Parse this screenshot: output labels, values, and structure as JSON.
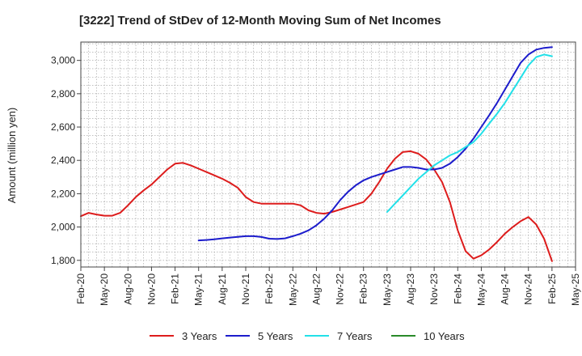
{
  "chart_data": {
    "type": "line",
    "title": "[3222]  Trend of StDev of 12-Month Moving Sum of Net Incomes",
    "xlabel": "",
    "ylabel": "Amount (million yen)",
    "ylim": [
      1760,
      3110
    ],
    "yticks": [
      1800,
      2000,
      2200,
      2400,
      2600,
      2800,
      3000
    ],
    "ytick_labels": [
      "1,800",
      "2,000",
      "2,200",
      "2,400",
      "2,600",
      "2,800",
      "3,000"
    ],
    "xticks": [
      "2020-02",
      "2020-05",
      "2020-08",
      "2020-11",
      "2021-02",
      "2021-05",
      "2021-08",
      "2021-11",
      "2022-02",
      "2022-05",
      "2022-08",
      "2022-11",
      "2023-02",
      "2023-05",
      "2023-08",
      "2023-11",
      "2024-02",
      "2024-05",
      "2024-08",
      "2024-11",
      "2025-02",
      "2025-05"
    ],
    "xtick_labels": [
      "Feb-20",
      "May-20",
      "Aug-20",
      "Nov-20",
      "Feb-21",
      "May-21",
      "Aug-21",
      "Nov-21",
      "Feb-22",
      "May-22",
      "Aug-22",
      "Nov-22",
      "Feb-23",
      "May-23",
      "Aug-23",
      "Nov-23",
      "Feb-24",
      "May-24",
      "Aug-24",
      "Nov-24",
      "Feb-25",
      "May-25"
    ],
    "xlim": [
      "2020-02",
      "2025-05"
    ],
    "grid": true,
    "legend_position": "bottom",
    "series": [
      {
        "name": "3 Years",
        "color": "#dd1c1c",
        "x": [
          "2020-02",
          "2020-03",
          "2020-04",
          "2020-05",
          "2020-06",
          "2020-07",
          "2020-08",
          "2020-09",
          "2020-10",
          "2020-11",
          "2020-12",
          "2021-01",
          "2021-02",
          "2021-03",
          "2021-04",
          "2021-05",
          "2021-06",
          "2021-07",
          "2021-08",
          "2021-09",
          "2021-10",
          "2021-11",
          "2021-12",
          "2022-01",
          "2022-02",
          "2022-03",
          "2022-04",
          "2022-05",
          "2022-06",
          "2022-07",
          "2022-08",
          "2022-09",
          "2022-10",
          "2022-11",
          "2022-12",
          "2023-01",
          "2023-02",
          "2023-03",
          "2023-04",
          "2023-05",
          "2023-06",
          "2023-07",
          "2023-08",
          "2023-09",
          "2023-10",
          "2023-11",
          "2023-12",
          "2024-01",
          "2024-02",
          "2024-03",
          "2024-04",
          "2024-05",
          "2024-06",
          "2024-07",
          "2024-08",
          "2024-09",
          "2024-10",
          "2024-11",
          "2024-12",
          "2025-01",
          "2025-02"
        ],
        "values": [
          2065,
          2085,
          2075,
          2068,
          2068,
          2085,
          2130,
          2180,
          2220,
          2255,
          2300,
          2345,
          2380,
          2385,
          2370,
          2350,
          2330,
          2310,
          2290,
          2265,
          2235,
          2180,
          2150,
          2140,
          2140,
          2140,
          2140,
          2140,
          2130,
          2100,
          2085,
          2080,
          2090,
          2105,
          2120,
          2135,
          2150,
          2200,
          2270,
          2350,
          2410,
          2450,
          2455,
          2440,
          2405,
          2345,
          2270,
          2150,
          1980,
          1855,
          1810,
          1830,
          1865,
          1910,
          1960,
          2000,
          2035,
          2060,
          2015,
          1930,
          1795
        ]
      },
      {
        "name": "5 Years",
        "color": "#1c1ccc",
        "x": [
          "2021-05",
          "2021-06",
          "2021-07",
          "2021-08",
          "2021-09",
          "2021-10",
          "2021-11",
          "2021-12",
          "2022-01",
          "2022-02",
          "2022-03",
          "2022-04",
          "2022-05",
          "2022-06",
          "2022-07",
          "2022-08",
          "2022-09",
          "2022-10",
          "2022-11",
          "2022-12",
          "2023-01",
          "2023-02",
          "2023-03",
          "2023-04",
          "2023-05",
          "2023-06",
          "2023-07",
          "2023-08",
          "2023-09",
          "2023-10",
          "2023-11",
          "2023-12",
          "2024-01",
          "2024-02",
          "2024-03",
          "2024-04",
          "2024-05",
          "2024-06",
          "2024-07",
          "2024-08",
          "2024-09",
          "2024-10",
          "2024-11",
          "2024-12",
          "2025-01",
          "2025-02"
        ],
        "values": [
          1920,
          1922,
          1926,
          1932,
          1937,
          1941,
          1945,
          1945,
          1940,
          1930,
          1928,
          1932,
          1945,
          1960,
          1980,
          2010,
          2050,
          2100,
          2160,
          2210,
          2250,
          2280,
          2300,
          2315,
          2330,
          2345,
          2360,
          2360,
          2355,
          2345,
          2345,
          2355,
          2380,
          2420,
          2470,
          2530,
          2600,
          2670,
          2745,
          2825,
          2905,
          2985,
          3035,
          3065,
          3075,
          3080
        ]
      },
      {
        "name": "7 Years",
        "color": "#22e0e8",
        "x": [
          "2023-05",
          "2023-06",
          "2023-07",
          "2023-08",
          "2023-09",
          "2023-10",
          "2023-11",
          "2023-12",
          "2024-01",
          "2024-02",
          "2024-03",
          "2024-04",
          "2024-05",
          "2024-06",
          "2024-07",
          "2024-08",
          "2024-09",
          "2024-10",
          "2024-11",
          "2024-12",
          "2025-01",
          "2025-02"
        ],
        "values": [
          2090,
          2140,
          2190,
          2240,
          2290,
          2330,
          2370,
          2400,
          2430,
          2450,
          2480,
          2510,
          2560,
          2620,
          2680,
          2745,
          2820,
          2895,
          2970,
          3020,
          3035,
          3025
        ]
      },
      {
        "name": "10 Years",
        "color": "#2a8a2a",
        "x": [],
        "values": []
      }
    ]
  }
}
